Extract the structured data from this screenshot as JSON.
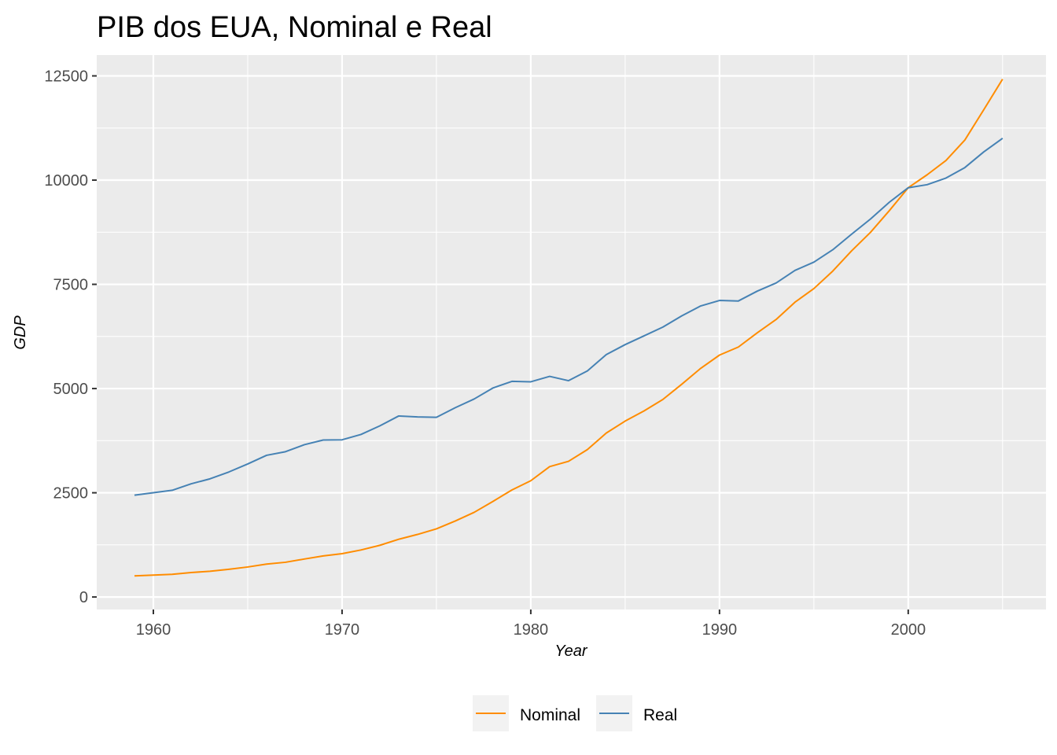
{
  "chart_data": {
    "type": "line",
    "title": "PIB dos EUA, Nominal e Real",
    "xlabel": "Year",
    "ylabel": "GDP",
    "xlim": [
      1957,
      2007.3
    ],
    "ylim": [
      -300,
      13000
    ],
    "xticks": [
      1960,
      1970,
      1980,
      1990,
      2000
    ],
    "yticks": [
      0,
      2500,
      5000,
      7500,
      10000,
      12500
    ],
    "grid": true,
    "legend_position": "bottom",
    "x": [
      1959,
      1960,
      1961,
      1962,
      1963,
      1964,
      1965,
      1966,
      1967,
      1968,
      1969,
      1970,
      1971,
      1972,
      1973,
      1974,
      1975,
      1976,
      1977,
      1978,
      1979,
      1980,
      1981,
      1982,
      1983,
      1984,
      1985,
      1986,
      1987,
      1988,
      1989,
      1990,
      1991,
      1992,
      1993,
      1994,
      1995,
      1996,
      1997,
      1998,
      1999,
      2000,
      2001,
      2002,
      2003,
      2004,
      2005
    ],
    "series": [
      {
        "name": "Nominal",
        "color": "#ff8c00",
        "values": [
          507,
          526,
          545,
          586,
          618,
          664,
          720,
          790,
          833,
          911,
          985,
          1039,
          1128,
          1240,
          1385,
          1501,
          1635,
          1824,
          2031,
          2295,
          2567,
          2789,
          3128,
          3255,
          3537,
          3933,
          4220,
          4463,
          4739,
          5104,
          5484,
          5803,
          5996,
          6338,
          6657,
          7072,
          7398,
          7817,
          8304,
          8747,
          9268,
          9817,
          10128,
          10470,
          10961,
          11686,
          12422
        ]
      },
      {
        "name": "Real",
        "color": "#4682b4",
        "values": [
          2442,
          2502,
          2560,
          2715,
          2834,
          2999,
          3191,
          3399,
          3485,
          3653,
          3765,
          3771,
          3898,
          4105,
          4342,
          4320,
          4311,
          4541,
          4750,
          5015,
          5173,
          5162,
          5292,
          5189,
          5424,
          5814,
          6054,
          6264,
          6475,
          6743,
          6981,
          7113,
          7101,
          7337,
          7533,
          7835,
          8032,
          8329,
          8704,
          9067,
          9470,
          9817,
          9891,
          10049,
          10301,
          10676,
          11003
        ]
      }
    ]
  }
}
